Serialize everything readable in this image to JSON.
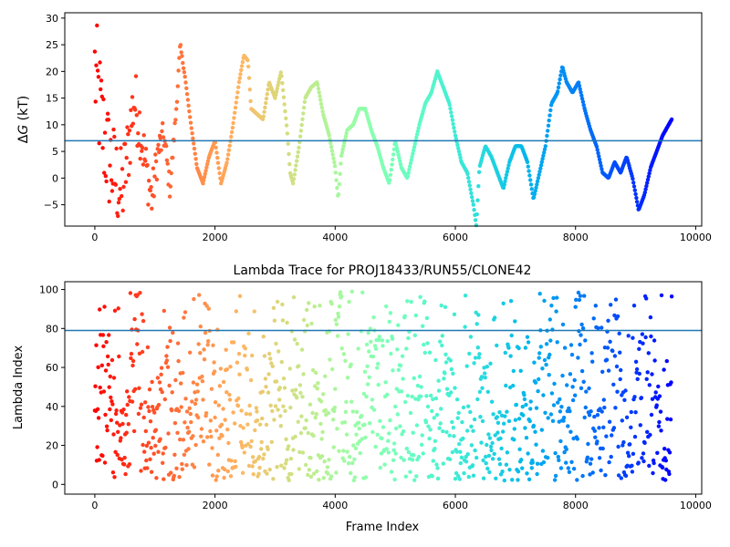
{
  "chart_data": [
    {
      "type": "scatter",
      "title": "",
      "ylabel_prefix": "Δ",
      "ylabel_var": "G",
      "ylabel_suffix": " (kT)",
      "xlabel": "",
      "xlim": [
        -500,
        10100
      ],
      "ylim": [
        -9,
        31
      ],
      "xticks": [
        0,
        2000,
        4000,
        6000,
        8000,
        10000
      ],
      "yticks": [
        -5,
        0,
        5,
        10,
        15,
        20,
        25,
        30
      ],
      "hline": 7.0,
      "hline_color": "#1f77b4",
      "colormap": "rainbow (reversed: red at frame 0, violet at last frame)",
      "grid": false,
      "series": [
        {
          "x": [
            0,
            60,
            120,
            180,
            250,
            350,
            450,
            550,
            650,
            750,
            850,
            950,
            1050,
            1150,
            1250,
            1350,
            1420,
            1500,
            1600,
            1700,
            1800,
            1900,
            2000,
            2100,
            2200,
            2300,
            2400,
            2480,
            2550,
            2600,
            2700,
            2800,
            2900,
            3000,
            3100,
            3200,
            3250,
            3300,
            3400,
            3500,
            3600,
            3700,
            3800,
            3900,
            4000,
            4050,
            4100,
            4200,
            4300,
            4400,
            4500,
            4600,
            4700,
            4800,
            4900,
            5000,
            5100,
            5200,
            5300,
            5400,
            5500,
            5600,
            5700,
            5800,
            5900,
            6000,
            6100,
            6200,
            6300,
            6350,
            6400,
            6500,
            6600,
            6700,
            6800,
            6900,
            7000,
            7100,
            7200,
            7300,
            7400,
            7500,
            7600,
            7700,
            7780,
            7850,
            7950,
            8050,
            8150,
            8250,
            8350,
            8450,
            8550,
            8650,
            8750,
            8850,
            8950,
            9050,
            9150,
            9250,
            9350,
            9450,
            9550,
            9600
          ],
          "y": [
            20,
            15,
            10,
            6,
            3,
            0,
            -3,
            5,
            15,
            10,
            2,
            -4,
            5,
            8,
            -2,
            12,
            25,
            19,
            10,
            2,
            -1,
            4,
            7,
            -1,
            3,
            10,
            18,
            23,
            22,
            13,
            12,
            11,
            18,
            15,
            20,
            9,
            1,
            -1,
            6,
            15,
            17,
            18,
            12,
            8,
            2,
            -4,
            4,
            9,
            10,
            13,
            13,
            9,
            6,
            2,
            -1,
            7,
            2,
            0,
            5,
            10,
            14,
            16,
            20,
            17,
            14,
            8,
            3,
            1,
            -5,
            -9,
            2,
            6,
            4,
            1,
            -2,
            3,
            6,
            6,
            3,
            -4,
            1,
            6,
            14,
            16,
            21,
            18,
            16,
            18,
            13,
            9,
            6,
            1,
            0,
            3,
            1,
            4,
            0,
            -6,
            -3,
            2,
            5,
            8,
            10,
            11
          ]
        }
      ]
    },
    {
      "type": "scatter",
      "title": "Lambda Trace for PROJ18433/RUN55/CLONE42",
      "xlabel": "Frame Index",
      "ylabel": "Lambda Index",
      "xlim": [
        -500,
        10100
      ],
      "ylim": [
        -5,
        104
      ],
      "xticks": [
        0,
        2000,
        4000,
        6000,
        8000,
        10000
      ],
      "yticks": [
        0,
        20,
        40,
        60,
        80,
        100
      ],
      "hline": 79,
      "hline_color": "#1f77b4",
      "colormap": "rainbow (reversed: red at frame 0, violet at last frame)",
      "grid": false,
      "series": [
        {
          "x_range": [
            0,
            9600
          ],
          "y_range": [
            2,
            99
          ],
          "description_of_distribution": ""
        }
      ]
    }
  ],
  "tick_labels": {
    "x": [
      "0",
      "2000",
      "4000",
      "6000",
      "8000",
      "10000"
    ],
    "y_top": [
      "−5",
      "0",
      "5",
      "10",
      "15",
      "20",
      "25",
      "30"
    ],
    "y_bottom": [
      "0",
      "20",
      "40",
      "60",
      "80",
      "100"
    ]
  },
  "colors": {
    "hline": "#1f77b4",
    "start_color": "#ff0000",
    "end_color": "#8000ff"
  }
}
